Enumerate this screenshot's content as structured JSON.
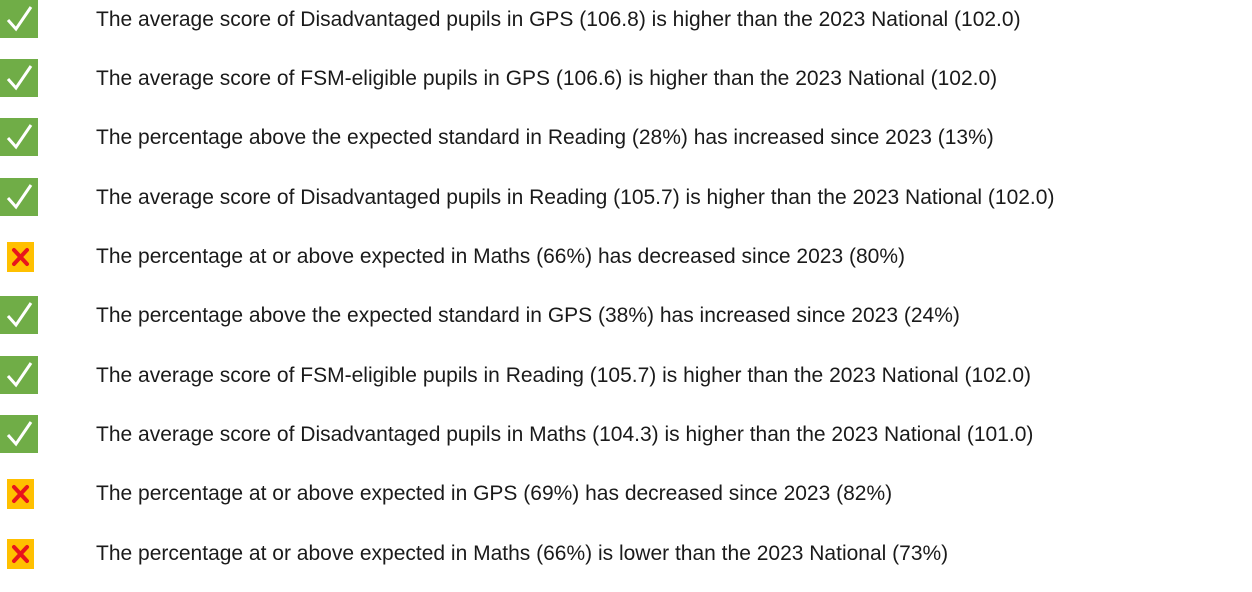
{
  "items": [
    "The average score of Disadvantaged pupils in GPS (106.8) is higher than the 2023 National (102.0)",
    "The average score of FSM-eligible pupils in GPS (106.6) is higher than the 2023 National (102.0)",
    "The percentage above the expected standard in Reading (28%) has increased since 2023 (13%)",
    "The average score of Disadvantaged pupils in Reading (105.7) is higher than the 2023 National (102.0)",
    "The percentage at or above expected in Maths (66%) has decreased since 2023 (80%)",
    "The percentage above the expected standard in GPS (38%) has increased since 2023 (24%)",
    "The average score of FSM-eligible pupils in Reading (105.7) is higher than the 2023 National (102.0)",
    "The average score of Disadvantaged pupils in Maths (104.3) is higher than the 2023 National (101.0)",
    "The percentage at or above expected in GPS (69%) has decreased since 2023 (82%)",
    "The percentage at or above expected in Maths (66%) is lower than the 2023 National (73%)"
  ]
}
